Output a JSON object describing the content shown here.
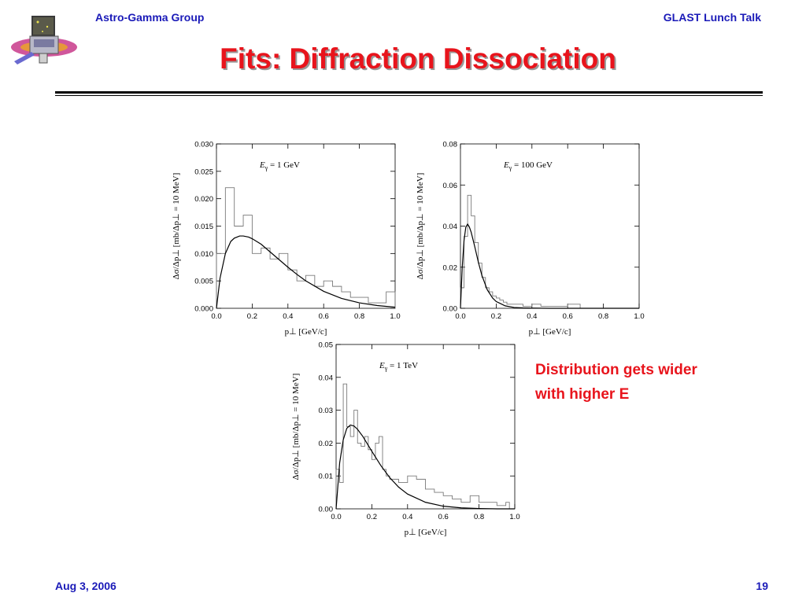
{
  "header": {
    "left": "Astro-Gamma Group",
    "right": "GLAST Lunch Talk"
  },
  "title": "Fits: Diffraction Dissociation",
  "annotation": {
    "line1": "Distribution gets wider",
    "line2": "with higher E"
  },
  "footer": {
    "date": "Aug 3, 2006",
    "page": "19"
  },
  "colors": {
    "accent_blue": "#1a1ab8",
    "title_red": "#e8141c",
    "plot_line": "#000000",
    "histogram": "#7a7a7a"
  },
  "icons": {
    "logo": "glast-satellite-logo-icon"
  },
  "chart_data": [
    {
      "type": "line",
      "legend_text": "E_γ = 1 GeV",
      "xlabel": "p⊥ [GeV/c]",
      "ylabel": "Δσ/Δp⊥ [mb/Δp⊥ = 10 MeV]",
      "xlim": [
        0.0,
        1.0
      ],
      "ylim": [
        0.0,
        0.03
      ],
      "xticks": [
        "0.0",
        "0.2",
        "0.4",
        "0.6",
        "0.8",
        "1.0"
      ],
      "yticks": [
        "0.000",
        "0.005",
        "0.010",
        "0.015",
        "0.020",
        "0.025",
        "0.030"
      ],
      "series": [
        {
          "kind": "histogram",
          "x": [
            0.0,
            0.05,
            0.1,
            0.15,
            0.2,
            0.25,
            0.3,
            0.35,
            0.4,
            0.45,
            0.5,
            0.55,
            0.6,
            0.65,
            0.7,
            0.75,
            0.8,
            0.85,
            0.9,
            0.95
          ],
          "values": [
            0.01,
            0.022,
            0.015,
            0.017,
            0.01,
            0.011,
            0.009,
            0.01,
            0.007,
            0.005,
            0.006,
            0.004,
            0.005,
            0.004,
            0.003,
            0.002,
            0.002,
            0.001,
            0.001,
            0.003
          ]
        },
        {
          "kind": "fit",
          "x": [
            0.0,
            0.02,
            0.05,
            0.08,
            0.1,
            0.13,
            0.15,
            0.18,
            0.2,
            0.25,
            0.3,
            0.35,
            0.4,
            0.45,
            0.5,
            0.6,
            0.7,
            0.8,
            0.9,
            1.0
          ],
          "values": [
            0.0,
            0.0055,
            0.01,
            0.0122,
            0.0128,
            0.0132,
            0.0132,
            0.013,
            0.0127,
            0.0117,
            0.0103,
            0.0089,
            0.0075,
            0.0062,
            0.005,
            0.0031,
            0.0018,
            0.001,
            0.0005,
            0.0002
          ]
        }
      ],
      "grid": false
    },
    {
      "type": "line",
      "legend_text": "E_γ = 100 GeV",
      "xlabel": "p⊥ [GeV/c]",
      "ylabel": "Δσ/Δp⊥ [mb/Δp⊥ = 10 MeV]",
      "xlim": [
        0.0,
        1.0
      ],
      "ylim": [
        0.0,
        0.08
      ],
      "xticks": [
        "0.0",
        "0.2",
        "0.4",
        "0.6",
        "0.8",
        "1.0"
      ],
      "yticks": [
        "0.00",
        "0.02",
        "0.04",
        "0.06",
        "0.08"
      ],
      "series": [
        {
          "kind": "histogram",
          "x": [
            0.0,
            0.02,
            0.04,
            0.06,
            0.08,
            0.1,
            0.12,
            0.14,
            0.16,
            0.18,
            0.2,
            0.22,
            0.24,
            0.26,
            0.28,
            0.3,
            0.35,
            0.4,
            0.45,
            0.5,
            0.55,
            0.6,
            0.65
          ],
          "values": [
            0.01,
            0.035,
            0.055,
            0.045,
            0.032,
            0.022,
            0.015,
            0.01,
            0.008,
            0.006,
            0.005,
            0.004,
            0.003,
            0.002,
            0.002,
            0.002,
            0.001,
            0.002,
            0.001,
            0.001,
            0.001,
            0.002,
            0.002
          ]
        },
        {
          "kind": "fit",
          "x": [
            0.0,
            0.01,
            0.02,
            0.03,
            0.04,
            0.05,
            0.06,
            0.08,
            0.1,
            0.12,
            0.15,
            0.18,
            0.2,
            0.25,
            0.3,
            0.35,
            0.4,
            0.5,
            0.6,
            0.8,
            1.0
          ],
          "values": [
            0.0,
            0.02,
            0.033,
            0.0395,
            0.041,
            0.0395,
            0.037,
            0.03,
            0.0225,
            0.016,
            0.009,
            0.005,
            0.0033,
            0.0012,
            0.0004,
            0.0002,
            0.0001,
            0.0,
            0.0,
            0.0,
            0.0
          ]
        }
      ],
      "grid": false
    },
    {
      "type": "line",
      "legend_text": "E_γ = 1 TeV",
      "xlabel": "p⊥ [GeV/c]",
      "ylabel": "Δσ/Δp⊥ [mb/Δp⊥ = 10 MeV]",
      "xlim": [
        0.0,
        1.0
      ],
      "ylim": [
        0.0,
        0.05
      ],
      "xticks": [
        "0.0",
        "0.2",
        "0.4",
        "0.6",
        "0.8",
        "1.0"
      ],
      "yticks": [
        "0.00",
        "0.01",
        "0.02",
        "0.03",
        "0.04",
        "0.05"
      ],
      "series": [
        {
          "kind": "histogram",
          "x": [
            0.0,
            0.02,
            0.04,
            0.06,
            0.08,
            0.1,
            0.12,
            0.14,
            0.16,
            0.18,
            0.2,
            0.22,
            0.24,
            0.26,
            0.28,
            0.3,
            0.35,
            0.4,
            0.45,
            0.5,
            0.55,
            0.6,
            0.65,
            0.7,
            0.75,
            0.8,
            0.85,
            0.9,
            0.95
          ],
          "values": [
            0.012,
            0.008,
            0.038,
            0.025,
            0.022,
            0.03,
            0.02,
            0.019,
            0.022,
            0.018,
            0.015,
            0.02,
            0.022,
            0.012,
            0.01,
            0.009,
            0.008,
            0.01,
            0.009,
            0.006,
            0.005,
            0.004,
            0.003,
            0.002,
            0.004,
            0.002,
            0.002,
            0.001,
            0.002
          ]
        },
        {
          "kind": "fit",
          "x": [
            0.0,
            0.02,
            0.04,
            0.06,
            0.08,
            0.1,
            0.12,
            0.15,
            0.2,
            0.25,
            0.3,
            0.35,
            0.4,
            0.5,
            0.6,
            0.7,
            0.8,
            0.9,
            1.0
          ],
          "values": [
            0.0,
            0.014,
            0.021,
            0.0245,
            0.0255,
            0.0252,
            0.0242,
            0.022,
            0.0175,
            0.0132,
            0.0095,
            0.0066,
            0.0045,
            0.002,
            0.0008,
            0.0003,
            0.0001,
            0.0,
            0.0
          ]
        }
      ],
      "grid": false
    }
  ]
}
